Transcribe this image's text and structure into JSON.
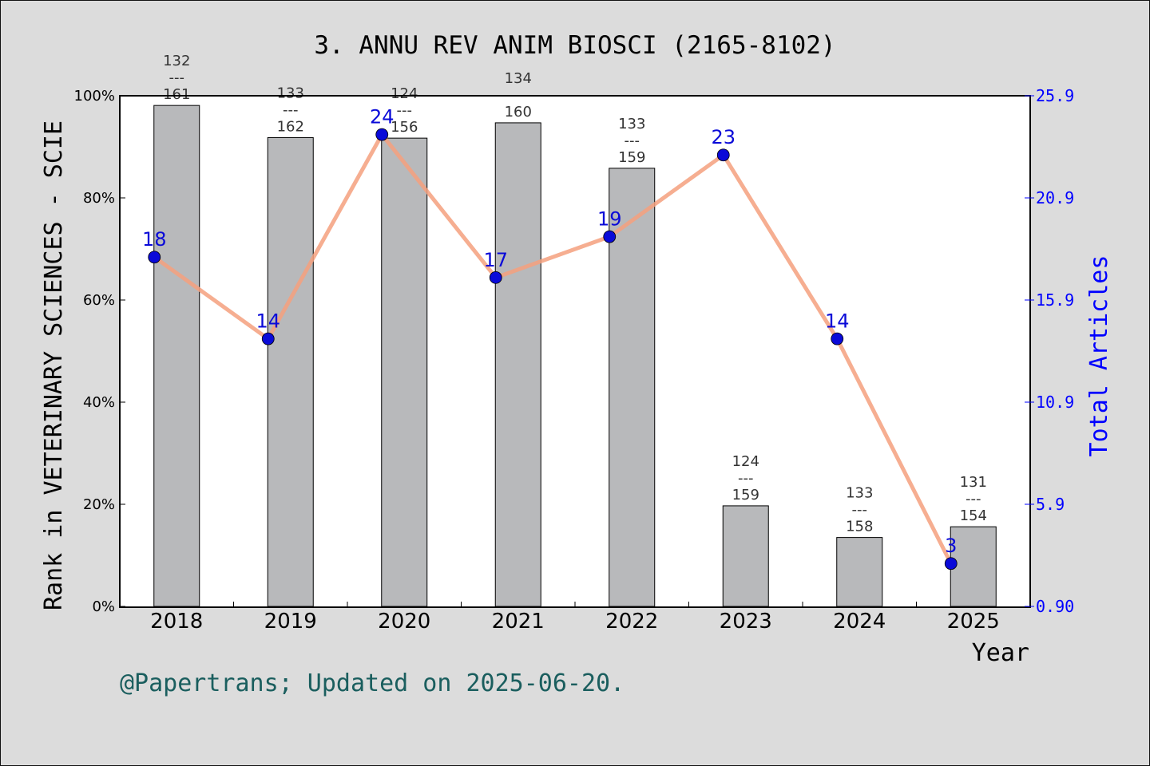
{
  "chart_data": {
    "type": "bar",
    "title": "3. ANNU REV ANIM BIOSCI (2165-8102)",
    "xlabel": "Year",
    "ylabel": "Rank in VETERINARY SCIENCES - SCIE",
    "y2label": "Total Articles",
    "footer": "@Papertrans; Updated on 2025-06-20.",
    "categories": [
      "2018",
      "2019",
      "2020",
      "2021",
      "2022",
      "2023",
      "2024",
      "2025"
    ],
    "ylim": [
      0,
      100
    ],
    "yticks": [
      "0%",
      "20%",
      "40%",
      "60%",
      "80%",
      "100%"
    ],
    "y2lim": [
      0.9,
      25.9
    ],
    "y2ticks": [
      "0.90",
      "5.9",
      "10.9",
      "15.9",
      "20.9",
      "25.9"
    ],
    "series": [
      {
        "kind": "bar",
        "values": [
          98.1,
          91.8,
          91.7,
          94.7,
          85.8,
          19.7,
          13.5,
          15.6
        ],
        "rank": [
          "132",
          "133",
          "124",
          "134",
          "133",
          "124",
          "133",
          "131"
        ],
        "total": [
          "161",
          "162",
          "156",
          "160",
          "159",
          "159",
          "158",
          "154"
        ],
        "separator": "---",
        "color": "#b8b9bb"
      },
      {
        "kind": "line",
        "values": [
          18,
          14,
          24,
          17,
          19,
          23,
          14,
          3
        ],
        "labels": [
          "18",
          "14",
          "24",
          "17",
          "19",
          "23",
          "14",
          "3"
        ],
        "line_color": "#f4a07e",
        "marker_color": "#0a0ad8",
        "label_color": "#0a0ad8"
      }
    ],
    "grid": false,
    "colors": {
      "background": "#dcdcdc",
      "plot_background": "#ffffff",
      "right_axis": "#0000ff",
      "footer": "#1a5e5e"
    }
  }
}
